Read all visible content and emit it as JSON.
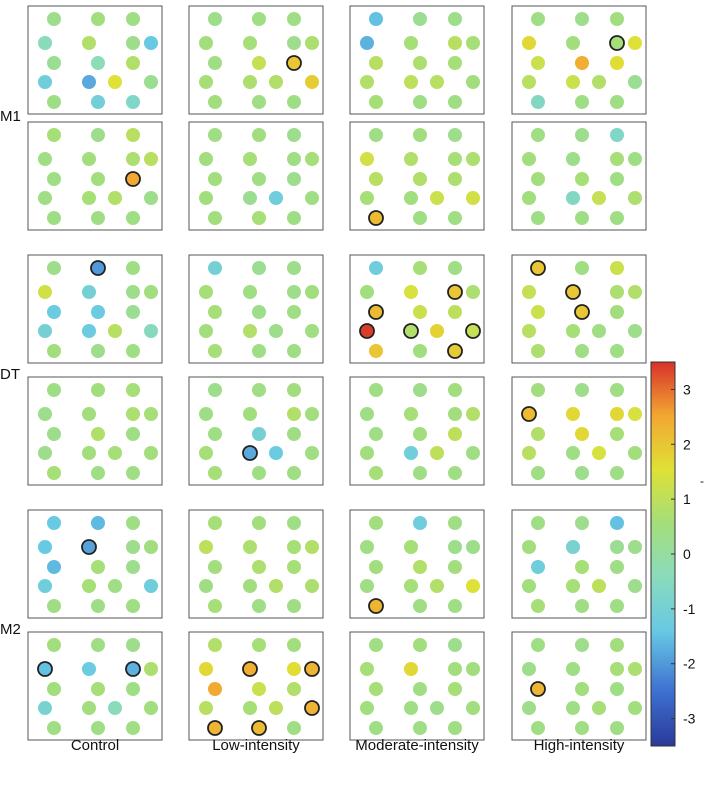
{
  "chart_data": {
    "type": "heatmap",
    "description_free": true,
    "columns": [
      "Control",
      "Low-intensity",
      "Moderate-intensity",
      "High-intensity"
    ],
    "row_groups": [
      "M1",
      "DT",
      "M2"
    ],
    "colorbar": {
      "min": -3.5,
      "max": 3.5,
      "ticks": [
        3,
        2,
        1,
        0,
        -1,
        -2,
        -3
      ],
      "colormap": "jet"
    },
    "colorbar_side_mark": "-",
    "channel_layout_note": "18 channels per map in a 3-2-3-3-3-2-2 lattice",
    "default_value": 0.4,
    "maps": [
      {
        "row": 0,
        "col": 0,
        "values": [
          0.3,
          0.5,
          0.4,
          -0.4,
          0.8,
          0.3,
          -1.4,
          0.2,
          -0.3,
          0.8,
          -1.2,
          -1.8,
          1.5,
          0.2,
          0.4,
          -1.1,
          -0.7
        ],
        "highlight": []
      },
      {
        "row": 0,
        "col": 1,
        "values": [
          0.3,
          0.4,
          0.4,
          0.5,
          0.6,
          0.3,
          0.7,
          0.4,
          1.1,
          2.0,
          0.6,
          0.7,
          0.8,
          1.9,
          0.5,
          0.4
        ],
        "highlight": [
          9
        ]
      },
      {
        "row": 0,
        "col": 2,
        "values": [
          -1.5,
          0.2,
          0.3,
          -1.7,
          0.6,
          0.9,
          0.6,
          0.9,
          0.7,
          0.6,
          0.8,
          1.0,
          0.9,
          0.5,
          0.6,
          0.4
        ],
        "highlight": []
      },
      {
        "row": 0,
        "col": 3,
        "values": [
          0.4,
          0.3,
          0.5,
          1.7,
          0.5,
          0.6,
          1.5,
          1.2,
          2.4,
          1.6,
          0.9,
          1.2,
          0.8,
          0.2,
          -0.6,
          0.4
        ],
        "highlight": [
          5
        ]
      },
      {
        "row": 1,
        "col": 0,
        "values": [
          0.6,
          0.3,
          0.9,
          0.4,
          0.5,
          0.7,
          0.9,
          0.4,
          0.5,
          2.5,
          0.4,
          0.6,
          0.8,
          0.3,
          0.4
        ],
        "highlight": [
          9
        ]
      },
      {
        "row": 1,
        "col": 1,
        "values": [
          0.4,
          0.5,
          0.3,
          0.5,
          0.6,
          0.4,
          0.6,
          0.5,
          0.4,
          0.3,
          0.5,
          0.2,
          -1.2,
          0.4,
          0.5,
          0.6
        ],
        "highlight": []
      },
      {
        "row": 1,
        "col": 2,
        "values": [
          0.4,
          0.5,
          0.3,
          1.3,
          0.8,
          0.6,
          0.7,
          0.9,
          0.8,
          0.7,
          0.6,
          0.5,
          1.2,
          1.3,
          2.2
        ],
        "highlight": [
          14
        ]
      },
      {
        "row": 1,
        "col": 3,
        "values": [
          0.4,
          0.3,
          -0.7,
          0.5,
          0.3,
          0.6,
          0.4,
          0.5,
          0.6,
          0.4,
          0.5,
          -0.6,
          1.1,
          0.7,
          0.4
        ],
        "highlight": []
      },
      {
        "row": 2,
        "col": 0,
        "values": [
          0.3,
          -2.0,
          0.4,
          1.3,
          -1.0,
          0.3,
          0.5,
          -1.3,
          -1.3,
          0.2,
          -1.0,
          -1.3,
          0.9,
          -0.5,
          0.5,
          0.3
        ],
        "highlight": [
          1
        ]
      },
      {
        "row": 2,
        "col": 1,
        "values": [
          -1.0,
          0.2,
          0.3,
          0.6,
          0.4,
          0.3,
          0.5,
          0.6,
          0.3,
          0.4,
          0.5,
          0.8,
          0.3,
          0.4,
          0.6
        ],
        "highlight": []
      },
      {
        "row": 2,
        "col": 2,
        "values": [
          -1.2,
          0.6,
          0.4,
          0.5,
          1.4,
          2.0,
          0.7,
          2.2,
          1.2,
          1.0,
          3.4,
          0.8,
          1.8,
          1.1,
          2.0,
          0.5,
          1.9,
          0.4
        ],
        "highlight": [
          5,
          7,
          11,
          13,
          16,
          10
        ]
      },
      {
        "row": 2,
        "col": 3,
        "values": [
          2.0,
          0.4,
          1.2,
          1.1,
          2.0,
          0.7,
          0.8,
          1.2,
          2.0,
          0.5,
          0.9,
          0.6,
          0.4,
          0.3,
          0.7
        ],
        "highlight": [
          0,
          4,
          8
        ]
      },
      {
        "row": 3,
        "col": 0,
        "values": [
          0.4,
          0.5,
          0.6,
          0.3,
          0.5,
          0.7,
          0.6,
          0.3,
          0.8,
          0.4,
          0.3,
          0.5,
          0.6,
          0.5,
          0.6
        ],
        "highlight": []
      },
      {
        "row": 3,
        "col": 1,
        "values": [
          0.3,
          0.4,
          0.5,
          0.4,
          0.5,
          0.8,
          0.5,
          0.4,
          -1.0,
          0.4,
          0.6,
          -1.8,
          -1.3,
          0.4,
          0.6,
          0.4
        ],
        "highlight": [
          11
        ]
      },
      {
        "row": 3,
        "col": 2,
        "values": [
          0.4,
          0.3,
          0.5,
          0.4,
          0.6,
          0.5,
          0.8,
          0.4,
          0.5,
          1.0,
          0.5,
          -1.2,
          1.0,
          0.4,
          0.6,
          0.4
        ],
        "highlight": []
      },
      {
        "row": 3,
        "col": 3,
        "values": [
          0.5,
          0.3,
          0.4,
          2.2,
          1.7,
          1.7,
          1.4,
          0.8,
          1.7,
          0.6,
          0.9,
          0.4,
          1.4,
          0.5,
          0.4,
          0.3
        ],
        "highlight": [
          3
        ]
      },
      {
        "row": 4,
        "col": 0,
        "values": [
          -1.4,
          -1.6,
          0.4,
          -1.4,
          -1.9,
          0.3,
          0.5,
          -1.6,
          0.6,
          0.3,
          -1.2,
          0.6,
          0.4,
          -1.2,
          0.4
        ],
        "highlight": [
          4
        ]
      },
      {
        "row": 4,
        "col": 1,
        "values": [
          0.6,
          0.5,
          0.4,
          1.0,
          0.7,
          0.6,
          0.8,
          0.5,
          0.7,
          0.6,
          0.4,
          0.5,
          0.8,
          0.7,
          0.6
        ],
        "highlight": []
      },
      {
        "row": 4,
        "col": 2,
        "values": [
          0.5,
          -1.2,
          0.4,
          0.4,
          0.6,
          0.3,
          0.3,
          0.5,
          0.8,
          0.5,
          0.4,
          0.6,
          0.8,
          1.5,
          2.3
        ],
        "highlight": [
          14
        ]
      },
      {
        "row": 4,
        "col": 3,
        "values": [
          0.4,
          0.3,
          -1.5,
          0.5,
          -0.9,
          0.2,
          0.3,
          -1.2,
          0.6,
          0.4,
          0.5,
          0.6,
          1.0,
          0.3,
          0.6
        ],
        "highlight": []
      },
      {
        "row": 5,
        "col": 0,
        "values": [
          0.5,
          0.4,
          0.3,
          -1.5,
          -1.3,
          -1.7,
          0.7,
          0.5,
          0.6,
          0.4,
          -0.9,
          0.5,
          -0.4,
          0.5,
          0.4
        ],
        "highlight": [
          3,
          5
        ]
      },
      {
        "row": 5,
        "col": 1,
        "values": [
          0.8,
          0.6,
          0.5,
          1.7,
          2.4,
          1.6,
          2.3,
          2.5,
          1.2,
          0.8,
          0.9,
          0.6,
          1.0,
          2.3,
          2.3,
          2.2
        ],
        "highlight": [
          4,
          6,
          13,
          14,
          15
        ]
      },
      {
        "row": 5,
        "col": 2,
        "values": [
          0.4,
          0.5,
          0.3,
          0.6,
          1.7,
          0.5,
          0.5,
          0.6,
          0.4,
          0.6,
          0.5,
          0.4,
          0.3,
          0.5,
          0.4
        ],
        "highlight": []
      },
      {
        "row": 5,
        "col": 3,
        "values": [
          0.4,
          0.3,
          0.5,
          0.3,
          0.4,
          0.6,
          0.7,
          2.3,
          0.5,
          0.4,
          0.3,
          0.4,
          0.6,
          0.5,
          0.4
        ],
        "highlight": [
          7
        ]
      }
    ]
  }
}
